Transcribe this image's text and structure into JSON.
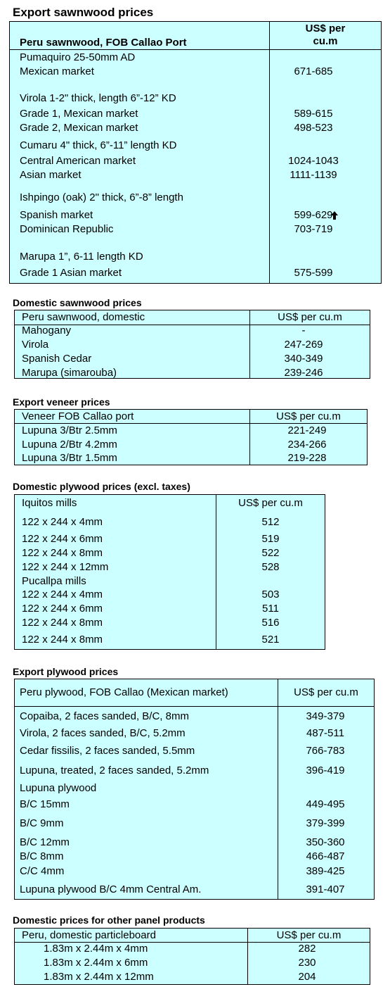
{
  "sections": [
    {
      "title": "Export sawnwood prices",
      "header": [
        "Peru sawnwood, FOB Callao Port",
        "US$ per cu.m"
      ],
      "rows": [
        [
          "Pumaquiro 25-50mm AD"
        ],
        [
          "Mexican market",
          "671-685"
        ],
        [
          "Virola  1-2\" thick, length  6”-12” KD"
        ],
        [
          "Grade 1, Mexican market",
          "589-615"
        ],
        [
          "Grade 2, Mexican market",
          "498-523"
        ],
        [
          "Cumaru 4\" thick, 6”-11” length KD"
        ],
        [
          "Central American market",
          "1024-1043"
        ],
        [
          "Asian market",
          "1111-1139"
        ],
        [
          "Ishpingo (oak) 2\" thick, 6”-8” length"
        ],
        [
          "Spanish market",
          "599-629"
        ],
        [
          "Dominican Republic",
          "703-719"
        ],
        [
          "Marupa  1”, 6-11 length KD"
        ],
        [
          "Grade 1 Asian market",
          "575-599"
        ]
      ]
    },
    {
      "title": "Domestic sawnwood prices",
      "header": [
        "Peru sawnwood, domestic",
        "US$ per cu.m"
      ],
      "rows": [
        [
          "Mahogany",
          "-"
        ],
        [
          "Virola",
          "247-269"
        ],
        [
          "Spanish Cedar",
          "340-349"
        ],
        [
          "Marupa (simarouba)",
          "239-246"
        ]
      ]
    },
    {
      "title": "Export veneer prices",
      "header": [
        "Veneer  FOB Callao port",
        "US$ per cu.m"
      ],
      "rows": [
        [
          "Lupuna 3/Btr 2.5mm",
          "221-249"
        ],
        [
          "Lupuna 2/Btr 4.2mm",
          "234-266"
        ],
        [
          "Lupuna 3/Btr 1.5mm",
          "219-228"
        ]
      ]
    },
    {
      "title": "Domestic plywood prices (excl. taxes)",
      "header": [
        "Iquitos mills",
        "US$ per cu.m"
      ],
      "rows": [
        [
          "122 x 244 x 4mm",
          "512"
        ],
        [
          "122 x 244 x 6mm",
          "519"
        ],
        [
          "122 x 244 x 8mm",
          "522"
        ],
        [
          "122 x 244 x 12mm",
          "528"
        ],
        [
          "Pucallpa mills"
        ],
        [
          "122 x 244 x 4mm",
          "503"
        ],
        [
          "122 x 244 x 6mm",
          "511"
        ],
        [
          "122 x 244 x 8mm",
          "516"
        ],
        [
          "122 x 244 x 8mm",
          "521"
        ]
      ]
    },
    {
      "title": "Export plywood prices",
      "header": [
        "Peru plywood, FOB Callao (Mexican market)",
        "US$ per cu.m"
      ],
      "rows": [
        [
          "Copaiba, 2 faces sanded, B/C, 8mm",
          "349-379"
        ],
        [
          "Virola, 2 faces sanded, B/C, 5.2mm",
          "487-511"
        ],
        [
          "Cedar fissilis, 2 faces sanded, 5.5mm",
          "766-783"
        ],
        [
          "Lupuna, treated, 2 faces sanded, 5.2mm",
          "396-419"
        ],
        [
          "Lupuna plywood"
        ],
        [
          "B/C 15mm",
          "449-495"
        ],
        [
          "B/C 9mm",
          "379-399"
        ],
        [
          "B/C 12mm",
          "350-360"
        ],
        [
          "B/C 8mm",
          "466-487"
        ],
        [
          "C/C 4mm",
          "389-425"
        ],
        [
          "Lupuna plywood B/C 4mm Central Am.",
          "391-407"
        ]
      ]
    },
    {
      "title": "Domestic prices for other panel products",
      "header": [
        "Peru, domestic particleboard",
        "US$ per cu.m"
      ],
      "rows": [
        [
          "1.83m x 2.44m x 4mm",
          "282"
        ],
        [
          "1.83m x 2.44m x 6mm",
          "230"
        ],
        [
          "1.83m x 2.44m x 12mm",
          "204"
        ]
      ]
    }
  ]
}
